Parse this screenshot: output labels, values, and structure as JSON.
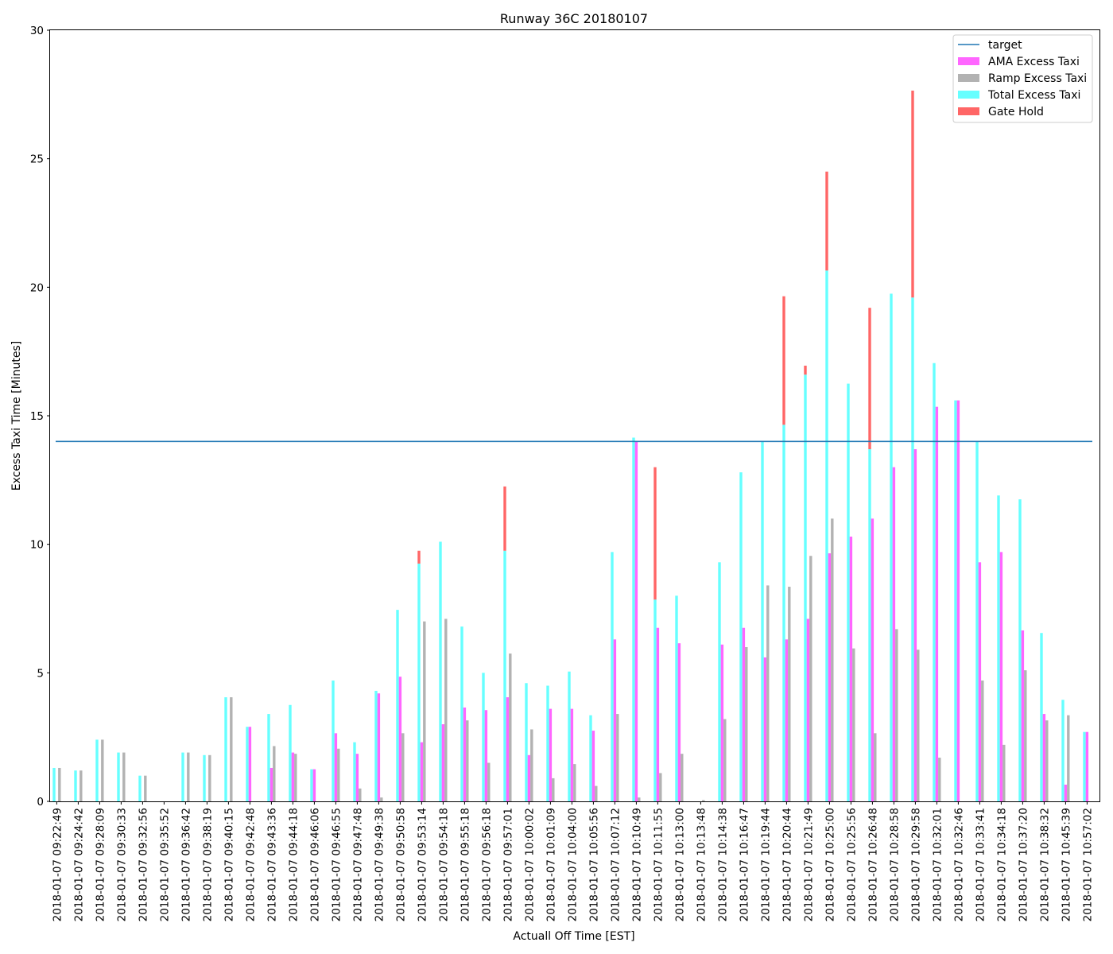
{
  "chart_data": {
    "type": "bar",
    "title": "Runway 36C 20180107",
    "xlabel": "Actuall Off Time [EST]",
    "ylabel": "Excess Taxi Time [Minutes]",
    "ylim": [
      0,
      30
    ],
    "yticks": [
      "0",
      "5",
      "10",
      "15",
      "20",
      "25",
      "30"
    ],
    "target": 14,
    "legend_position": "top-right",
    "grid": false,
    "categories": [
      "2018-01-07 09:22:49",
      "2018-01-07 09:24:42",
      "2018-01-07 09:28:09",
      "2018-01-07 09:30:33",
      "2018-01-07 09:32:56",
      "2018-01-07 09:35:52",
      "2018-01-07 09:36:42",
      "2018-01-07 09:38:19",
      "2018-01-07 09:40:15",
      "2018-01-07 09:42:48",
      "2018-01-07 09:43:36",
      "2018-01-07 09:44:18",
      "2018-01-07 09:46:06",
      "2018-01-07 09:46:55",
      "2018-01-07 09:47:48",
      "2018-01-07 09:49:38",
      "2018-01-07 09:50:58",
      "2018-01-07 09:53:14",
      "2018-01-07 09:54:18",
      "2018-01-07 09:55:18",
      "2018-01-07 09:56:18",
      "2018-01-07 09:57:01",
      "2018-01-07 10:00:02",
      "2018-01-07 10:01:09",
      "2018-01-07 10:04:00",
      "2018-01-07 10:05:56",
      "2018-01-07 10:07:12",
      "2018-01-07 10:10:49",
      "2018-01-07 10:11:55",
      "2018-01-07 10:13:00",
      "2018-01-07 10:13:48",
      "2018-01-07 10:14:38",
      "2018-01-07 10:16:47",
      "2018-01-07 10:19:44",
      "2018-01-07 10:20:44",
      "2018-01-07 10:21:49",
      "2018-01-07 10:25:00",
      "2018-01-07 10:25:56",
      "2018-01-07 10:26:48",
      "2018-01-07 10:28:58",
      "2018-01-07 10:29:58",
      "2018-01-07 10:32:01",
      "2018-01-07 10:32:46",
      "2018-01-07 10:33:41",
      "2018-01-07 10:34:18",
      "2018-01-07 10:37:20",
      "2018-01-07 10:38:32",
      "2018-01-07 10:45:39",
      "2018-01-07 10:57:02"
    ],
    "series": [
      {
        "name": "Total Excess Taxi",
        "color": "#66ffff",
        "values": [
          1.3,
          1.2,
          2.4,
          1.9,
          1.0,
          0,
          1.9,
          1.8,
          4.05,
          2.9,
          3.4,
          3.75,
          1.25,
          4.7,
          2.3,
          4.3,
          7.45,
          9.25,
          10.1,
          6.8,
          5.0,
          9.75,
          4.6,
          4.5,
          5.05,
          3.35,
          9.7,
          14.15,
          7.85,
          8.0,
          0,
          9.3,
          12.8,
          14.0,
          14.65,
          16.6,
          20.65,
          16.25,
          13.7,
          19.75,
          19.6,
          17.05,
          15.6,
          14.0,
          11.9,
          11.75,
          6.55,
          3.95,
          2.7
        ]
      },
      {
        "name": "Gate Hold",
        "color": "#ff6666",
        "values": [
          0,
          0,
          0,
          0,
          0,
          0,
          0,
          0,
          0,
          0,
          0,
          0,
          0,
          0,
          0,
          0,
          0,
          0.5,
          0,
          0,
          0,
          2.5,
          0,
          0,
          0,
          0,
          0,
          0,
          5.15,
          0,
          0,
          0,
          0,
          0,
          5.0,
          0.35,
          3.85,
          0,
          5.5,
          0,
          8.05,
          0,
          0,
          0,
          0,
          0,
          0,
          0,
          0
        ]
      },
      {
        "name": "AMA Excess Taxi",
        "color": "#ff66ff",
        "values": [
          0,
          0,
          0,
          0,
          0,
          0,
          0,
          0,
          0,
          2.9,
          1.3,
          1.9,
          1.25,
          2.65,
          1.85,
          4.2,
          4.85,
          2.3,
          3.0,
          3.65,
          3.55,
          4.05,
          1.8,
          3.6,
          3.6,
          2.75,
          6.3,
          14.0,
          6.75,
          6.15,
          0,
          6.1,
          6.75,
          5.6,
          6.3,
          7.1,
          9.65,
          10.3,
          11.0,
          13.0,
          13.7,
          15.35,
          15.6,
          9.3,
          9.7,
          6.65,
          3.4,
          0.65,
          2.7
        ]
      },
      {
        "name": "Ramp Excess Taxi",
        "color": "#b2b2b2",
        "values": [
          1.3,
          1.2,
          2.4,
          1.9,
          1.0,
          0,
          1.9,
          1.8,
          4.05,
          0,
          2.15,
          1.85,
          0,
          2.05,
          0.5,
          0.15,
          2.65,
          7.0,
          7.1,
          3.15,
          1.5,
          5.75,
          2.8,
          0.9,
          1.45,
          0.6,
          3.4,
          0.15,
          1.1,
          1.85,
          0.05,
          3.2,
          6.0,
          8.4,
          8.35,
          9.55,
          11.0,
          5.95,
          2.65,
          6.7,
          5.9,
          1.7,
          0,
          4.7,
          2.2,
          5.1,
          3.15,
          3.35,
          0
        ]
      }
    ]
  },
  "legend": {
    "items": [
      {
        "label": "target",
        "color": "#1f77b4",
        "kind": "line"
      },
      {
        "label": "AMA Excess Taxi",
        "color": "#ff66ff",
        "kind": "patch"
      },
      {
        "label": "Ramp Excess Taxi",
        "color": "#b2b2b2",
        "kind": "patch"
      },
      {
        "label": "Total Excess Taxi",
        "color": "#66ffff",
        "kind": "patch"
      },
      {
        "label": "Gate Hold",
        "color": "#ff6666",
        "kind": "patch"
      }
    ]
  }
}
